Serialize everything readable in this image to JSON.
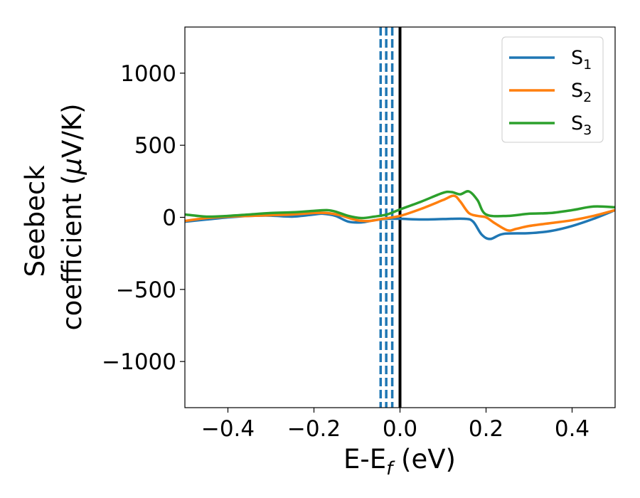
{
  "chart_data": {
    "type": "line",
    "xlabel": "E-E",
    "xlabel_sub": "f",
    "xlabel_unit": " (eV)",
    "ylabel_line1": "Seebeck",
    "ylabel_line2": "coefficient  (",
    "ylabel_mu": "μ",
    "ylabel_unit": "V/K)",
    "xlim": [
      -0.5,
      0.5
    ],
    "ylim": [
      -1320,
      1320
    ],
    "xticks": [
      -0.4,
      -0.2,
      0.0,
      0.2,
      0.4
    ],
    "xtick_labels": [
      "−0.4",
      "−0.2",
      "0.0",
      "0.2",
      "0.4"
    ],
    "yticks": [
      -1000,
      -500,
      0,
      500,
      1000
    ],
    "ytick_labels": [
      "−1000",
      "−500",
      "0",
      "500",
      "1000"
    ],
    "grid": false,
    "legend_position": "top-right",
    "vertical_lines": [
      {
        "x": 0.0,
        "color": "#000000",
        "style": "solid"
      },
      {
        "x": -0.045,
        "color": "#1f77b4",
        "style": "dashed"
      },
      {
        "x": -0.032,
        "color": "#1f77b4",
        "style": "dashed"
      },
      {
        "x": -0.018,
        "color": "#1f77b4",
        "style": "dashed"
      }
    ],
    "series": [
      {
        "name": "S",
        "subscript": "1",
        "color": "#1f77b4",
        "points": [
          [
            -0.5,
            -30
          ],
          [
            -0.45,
            -15
          ],
          [
            -0.4,
            0
          ],
          [
            -0.35,
            10
          ],
          [
            -0.3,
            12
          ],
          [
            -0.25,
            5
          ],
          [
            -0.2,
            20
          ],
          [
            -0.18,
            25
          ],
          [
            -0.15,
            10
          ],
          [
            -0.12,
            -30
          ],
          [
            -0.09,
            -35
          ],
          [
            -0.06,
            -20
          ],
          [
            -0.03,
            -10
          ],
          [
            0.0,
            -10
          ],
          [
            0.05,
            -15
          ],
          [
            0.1,
            -12
          ],
          [
            0.15,
            -10
          ],
          [
            0.17,
            -30
          ],
          [
            0.19,
            -120
          ],
          [
            0.21,
            -150
          ],
          [
            0.24,
            -115
          ],
          [
            0.3,
            -110
          ],
          [
            0.35,
            -95
          ],
          [
            0.4,
            -60
          ],
          [
            0.45,
            -10
          ],
          [
            0.5,
            50
          ]
        ]
      },
      {
        "name": "S",
        "subscript": "2",
        "color": "#ff7f0e",
        "points": [
          [
            -0.5,
            -25
          ],
          [
            -0.45,
            -5
          ],
          [
            -0.4,
            5
          ],
          [
            -0.35,
            10
          ],
          [
            -0.3,
            15
          ],
          [
            -0.25,
            20
          ],
          [
            -0.2,
            30
          ],
          [
            -0.17,
            30
          ],
          [
            -0.14,
            15
          ],
          [
            -0.1,
            -20
          ],
          [
            -0.07,
            -25
          ],
          [
            -0.04,
            -10
          ],
          [
            0.0,
            10
          ],
          [
            0.05,
            60
          ],
          [
            0.1,
            120
          ],
          [
            0.125,
            150
          ],
          [
            0.14,
            110
          ],
          [
            0.16,
            30
          ],
          [
            0.18,
            10
          ],
          [
            0.2,
            0
          ],
          [
            0.22,
            -40
          ],
          [
            0.25,
            -90
          ],
          [
            0.27,
            -80
          ],
          [
            0.3,
            -60
          ],
          [
            0.35,
            -40
          ],
          [
            0.4,
            -20
          ],
          [
            0.45,
            10
          ],
          [
            0.5,
            50
          ]
        ]
      },
      {
        "name": "S",
        "subscript": "3",
        "color": "#2ca02c",
        "points": [
          [
            -0.5,
            20
          ],
          [
            -0.45,
            5
          ],
          [
            -0.4,
            10
          ],
          [
            -0.35,
            20
          ],
          [
            -0.3,
            30
          ],
          [
            -0.25,
            35
          ],
          [
            -0.2,
            45
          ],
          [
            -0.17,
            50
          ],
          [
            -0.15,
            40
          ],
          [
            -0.12,
            10
          ],
          [
            -0.09,
            -5
          ],
          [
            -0.06,
            5
          ],
          [
            -0.03,
            20
          ],
          [
            0.0,
            55
          ],
          [
            0.05,
            110
          ],
          [
            0.1,
            170
          ],
          [
            0.12,
            175
          ],
          [
            0.14,
            160
          ],
          [
            0.16,
            180
          ],
          [
            0.18,
            120
          ],
          [
            0.2,
            20
          ],
          [
            0.25,
            10
          ],
          [
            0.3,
            25
          ],
          [
            0.35,
            30
          ],
          [
            0.4,
            50
          ],
          [
            0.45,
            75
          ],
          [
            0.5,
            70
          ]
        ]
      }
    ]
  }
}
